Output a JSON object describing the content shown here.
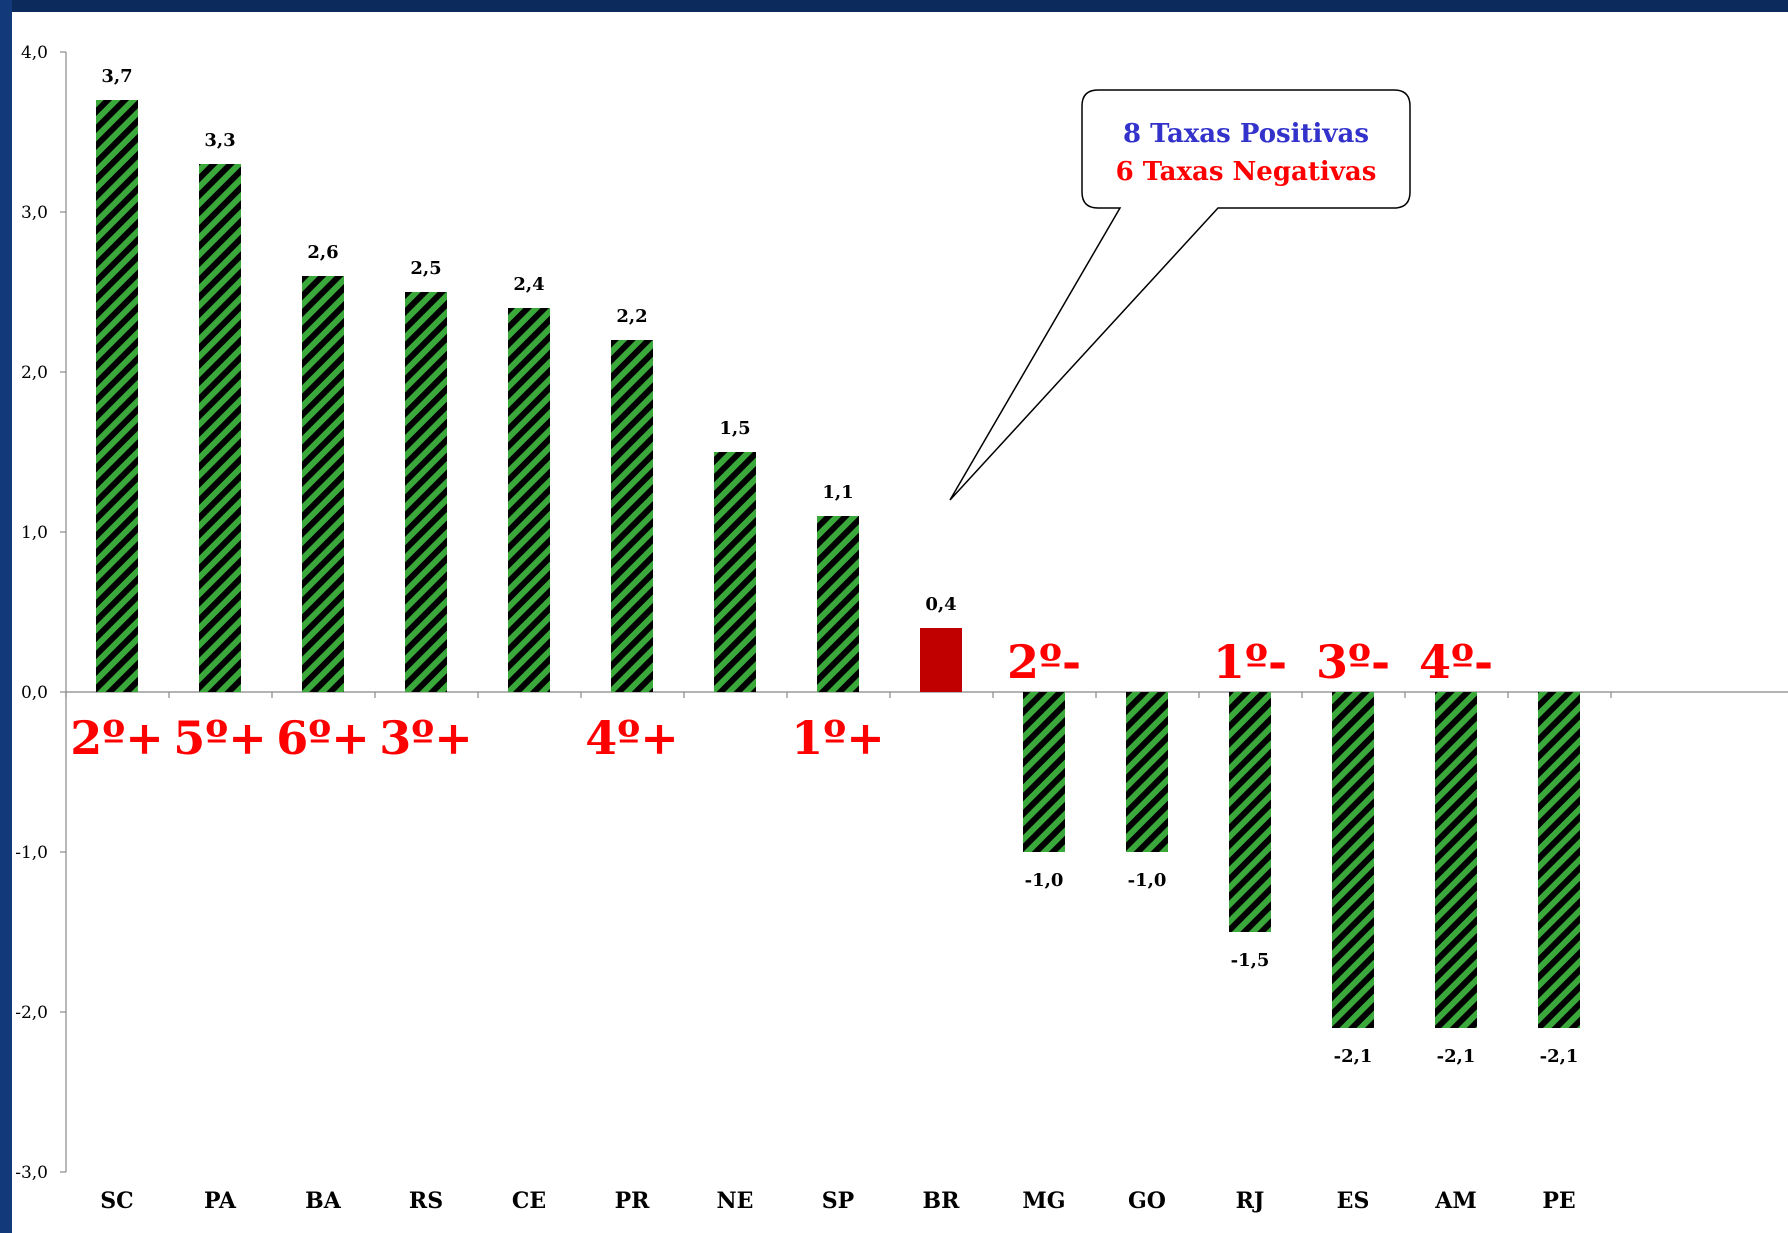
{
  "colors": {
    "bar_stripe_dark": "#000000",
    "bar_stripe_green": "#3aa83a",
    "highlight_bar": "#c00000",
    "rank_text": "#ff0000",
    "callout_positive": "#3333cc",
    "callout_negative": "#ff0000",
    "frame": "#0d2a5c"
  },
  "chart_data": {
    "type": "bar",
    "categories": [
      "SC",
      "PA",
      "BA",
      "RS",
      "CE",
      "PR",
      "NE",
      "SP",
      "BR",
      "MG",
      "GO",
      "RJ",
      "ES",
      "AM",
      "PE"
    ],
    "values": [
      3.7,
      3.3,
      2.6,
      2.5,
      2.4,
      2.2,
      1.5,
      1.1,
      0.4,
      -1.0,
      -1.0,
      -1.5,
      -2.1,
      -2.1,
      -2.1
    ],
    "data_labels": [
      "3,7",
      "3,3",
      "2,6",
      "2,5",
      "2,4",
      "2,2",
      "1,5",
      "1,1",
      "0,4",
      "-1,0",
      "-1,0",
      "-1,5",
      "-2,1",
      "-2,1",
      "-2,1"
    ],
    "highlight_category": "BR",
    "ylim": [
      -3.0,
      4.0
    ],
    "yticks": [
      "4,0",
      "3,0",
      "2,0",
      "1,0",
      "0,0",
      "-1,0",
      "-2,0",
      "-3,0"
    ],
    "ytick_values": [
      4,
      3,
      2,
      1,
      0,
      -1,
      -2,
      -3
    ],
    "grid": false,
    "rank_annotations": [
      {
        "category": "SC",
        "text": "2º+"
      },
      {
        "category": "PA",
        "text": "5º+"
      },
      {
        "category": "BA",
        "text": "6º+"
      },
      {
        "category": "RS",
        "text": "3º+"
      },
      {
        "category": "PR",
        "text": "4º+"
      },
      {
        "category": "SP",
        "text": "1º+"
      },
      {
        "category": "MG",
        "text": "2º-"
      },
      {
        "category": "RJ",
        "text": "1º-"
      },
      {
        "category": "ES",
        "text": "3º-"
      },
      {
        "category": "AM",
        "text": "4º-"
      }
    ],
    "callout": {
      "line1": "8 Taxas Positivas",
      "line2": "6 Taxas Negativas"
    }
  }
}
